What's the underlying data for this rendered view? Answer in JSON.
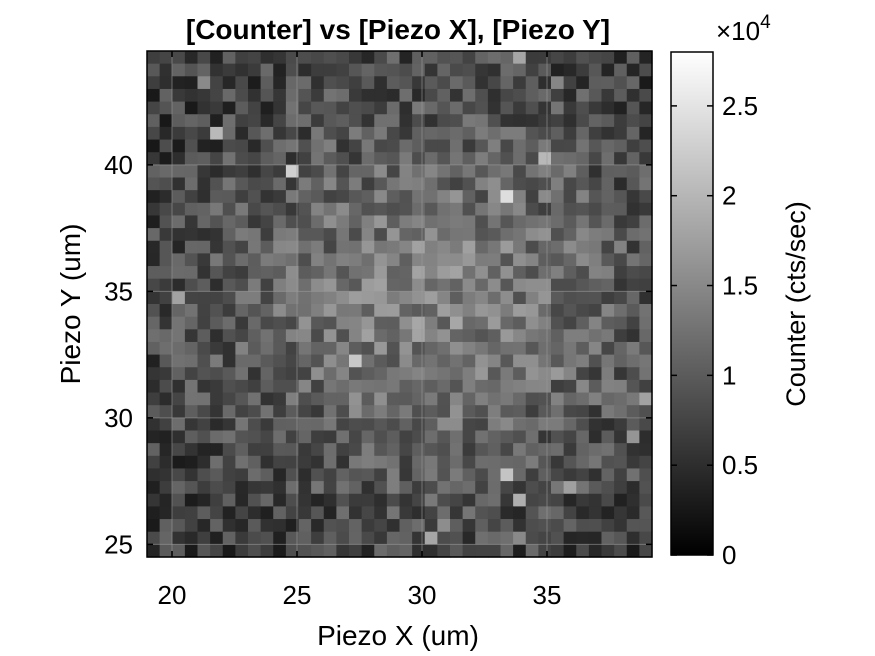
{
  "chart_data": {
    "type": "heatmap",
    "title": "[Counter] vs [Piezo X], [Piezo Y]",
    "xlabel": "Piezo X (um)",
    "ylabel": "Piezo Y (um)",
    "xlim": [
      19,
      39.2
    ],
    "ylim": [
      24.5,
      44.5
    ],
    "x_ticks": [
      20,
      25,
      30,
      35
    ],
    "y_ticks": [
      25,
      30,
      35,
      40
    ],
    "grid": true,
    "grid_rows": 40,
    "grid_cols": 40,
    "colormap": "gray",
    "colorbar": {
      "label": "Counter (cts/sec)",
      "exponent_multiplier": "×10",
      "exponent": "4",
      "ticks": [
        "0",
        "0.5",
        "1",
        "1.5",
        "2",
        "2.5"
      ],
      "tick_values": [
        0,
        5000,
        10000,
        15000,
        20000,
        25000
      ],
      "range": [
        0,
        28000
      ]
    },
    "bright_region": {
      "center_x": 30.5,
      "center_y": 34.5,
      "description_values": "counts roughly 10000-25000 cts/sec in central blob, 2000-10000 at edges"
    }
  },
  "colors": {
    "background": "#ffffff",
    "axes": "#000000",
    "grid": "#9a9a9a"
  }
}
